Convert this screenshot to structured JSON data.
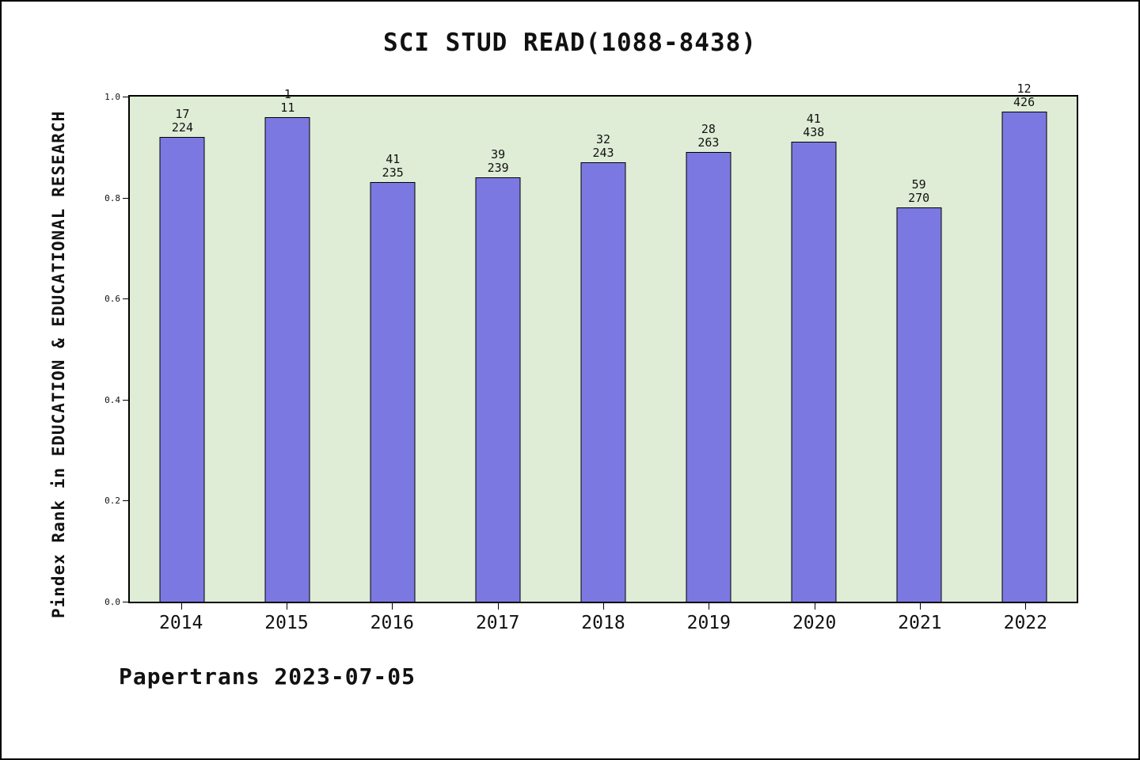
{
  "chart_data": {
    "type": "bar",
    "title": "SCI STUD READ(1088-8438)",
    "ylabel": "Pindex Rank in EDUCATION & EDUCATIONAL RESEARCH",
    "caption": "Papertrans 2023-07-05",
    "categories": [
      "2014",
      "2015",
      "2016",
      "2017",
      "2018",
      "2019",
      "2020",
      "2021",
      "2022"
    ],
    "values": [
      0.92,
      0.96,
      0.83,
      0.84,
      0.87,
      0.89,
      0.91,
      0.78,
      0.97
    ],
    "bar_rank_labels": [
      "17",
      "1",
      "41",
      "39",
      "32",
      "28",
      "41",
      "59",
      "12"
    ],
    "bar_count_labels": [
      "224",
      "11",
      "235",
      "239",
      "243",
      "263",
      "438",
      "270",
      "426"
    ],
    "yticks": [
      "0.0",
      "0.2",
      "0.4",
      "0.6",
      "0.8",
      "1.0"
    ],
    "ylim": [
      0.0,
      1.0
    ],
    "grid": "off",
    "legend": "none",
    "bar_color": "#7b79e1",
    "plot_bg": "#dfecd6",
    "text_color": "#111111"
  }
}
